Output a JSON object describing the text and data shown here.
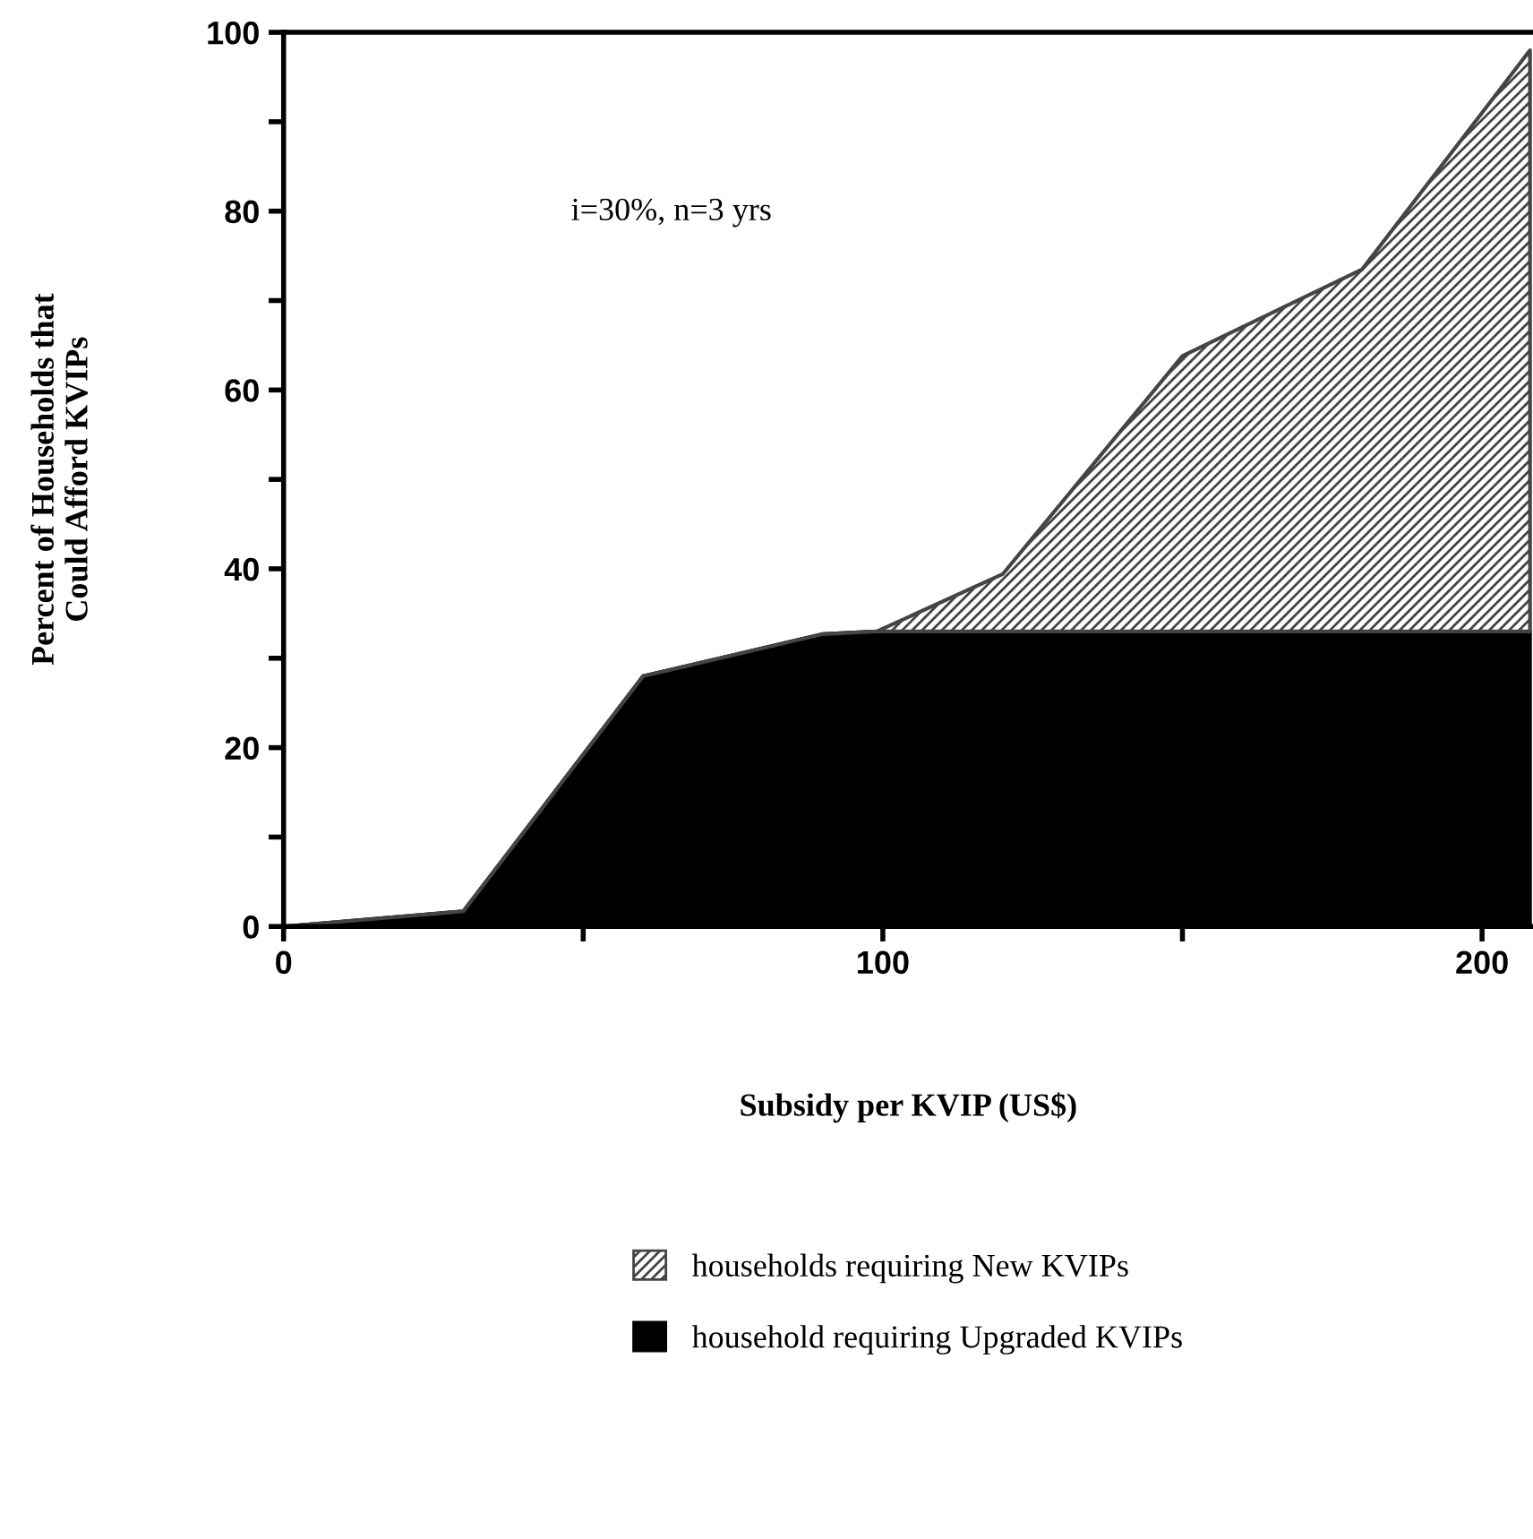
{
  "chart_data": {
    "type": "area",
    "stacked": true,
    "xlabel": "Subsidy per KVIP (US$)",
    "ylabel": "Percent of Households that\nCould Afford KVIPs",
    "annotations": [
      "i=30%, n=3 yrs"
    ],
    "x": [
      0,
      30,
      60,
      90,
      99,
      120,
      150,
      180,
      208
    ],
    "series": [
      {
        "name": "household requiring Upgraded KVIPs",
        "color": "#000000",
        "values": [
          0,
          1.7,
          28,
          32.7,
          33,
          33,
          33,
          33,
          33
        ]
      },
      {
        "name": "households requiring New KVIPs",
        "color": "#444444",
        "values": [
          0,
          0,
          0,
          0,
          0,
          6.4,
          30.8,
          40.5,
          65
        ]
      }
    ],
    "xlim": [
      0,
      208.5
    ],
    "xticks": [
      0,
      {
        "value": 50,
        "label": null
      },
      100,
      {
        "value": 150,
        "label": null
      },
      200
    ],
    "ylim": [
      0,
      100
    ],
    "yticks": [
      0,
      {
        "value": 10,
        "label": null
      },
      20,
      {
        "value": 30,
        "label": null
      },
      40,
      {
        "value": 50,
        "label": null
      },
      60,
      {
        "value": 70,
        "label": null
      },
      80,
      {
        "value": 90,
        "label": null
      },
      100
    ],
    "grid": false,
    "legend": "bottom"
  }
}
